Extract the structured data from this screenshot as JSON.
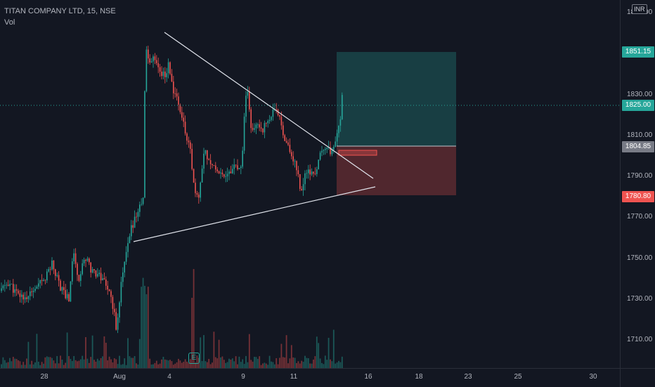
{
  "legend": {
    "title": "TITAN COMPANY LTD, 15, NSE",
    "volume_label": "Vol"
  },
  "price_scale": {
    "currency": "INR",
    "ticks": [
      "1850.00",
      "1830.00",
      "1810.00",
      "1790.00",
      "1770.00",
      "1750.00",
      "1730.00",
      "1710.00"
    ],
    "badges": [
      {
        "label": "1851.15",
        "color": "#26a69a"
      },
      {
        "label": "1825.00",
        "color": "#26a69a"
      },
      {
        "label": "1804.85",
        "color": "#787b86"
      },
      {
        "label": "1780.80",
        "color": "#ef5350"
      }
    ]
  },
  "time_scale": {
    "ticks": [
      "28",
      "Aug",
      "4",
      "9",
      "11",
      "16",
      "18",
      "23",
      "25",
      "30"
    ]
  },
  "event_marker": {
    "label": "E"
  },
  "colors": {
    "up": "#26a69a",
    "down": "#ef5350",
    "background": "#131722"
  },
  "chart_data": {
    "type": "candlestick",
    "symbol": "TITAN COMPANY LTD",
    "interval": "15",
    "exchange": "NSE",
    "ylim": [
      1696,
      1868
    ],
    "last_price": 1825.0,
    "position": {
      "target": 1851.15,
      "entry": 1804.85,
      "stop": 1780.8
    },
    "trendlines": [
      {
        "from": [
          "Aug 2",
          1863.5
        ],
        "to": [
          "Aug 15",
          1789.5
        ]
      },
      {
        "from": [
          "Aug 1",
          1759.5
        ],
        "to": [
          "Aug 15",
          1785.0
        ]
      }
    ],
    "ohlc_summary": {
      "period_low": 1712,
      "period_high": 1862,
      "consolidation_high": 1832,
      "consolidation_low": 1773
    }
  }
}
